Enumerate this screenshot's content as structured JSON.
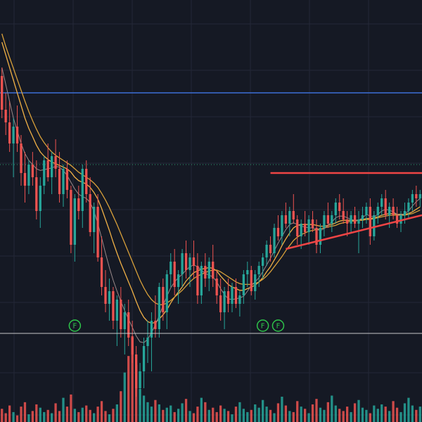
{
  "colors": {
    "background": "#151924",
    "grid": "#232837",
    "up": "#26a69a",
    "down": "#ef5350",
    "ma_fast": "#f0b046",
    "ma_slow": "#d8a03a",
    "ma_thin": "#9a8a8a",
    "horizontal_line": "#3d6fd6",
    "dotted_line": "#2b9c6b",
    "trend_line": "#ef4545",
    "separator": "#c8c8c8",
    "marker": "#2ec44a"
  },
  "chart_data": {
    "type": "candlestick",
    "grid": true,
    "price_range": [
      35.0,
      74.0
    ],
    "horizontal_line_price": 63.0,
    "dotted_line_price": 54.5,
    "candles": [
      [
        0,
        65,
        66,
        60,
        61
      ],
      [
        1,
        61,
        63,
        58,
        59.5
      ],
      [
        2,
        59.5,
        62,
        56,
        57
      ],
      [
        3,
        57,
        60,
        53,
        59
      ],
      [
        4,
        59,
        61.5,
        56,
        57
      ],
      [
        5,
        57,
        58,
        52,
        53.5
      ],
      [
        6,
        53.5,
        56,
        50,
        52
      ],
      [
        7,
        52,
        55,
        51,
        54.5
      ],
      [
        8,
        54.5,
        56,
        52,
        53
      ],
      [
        9,
        53,
        55,
        48,
        49
      ],
      [
        10,
        49,
        53,
        47,
        52
      ],
      [
        11,
        52,
        55.5,
        51,
        55
      ],
      [
        12,
        55,
        57,
        52.5,
        53
      ],
      [
        13,
        53,
        56,
        51,
        55.5
      ],
      [
        14,
        55.5,
        57.5,
        53,
        54
      ],
      [
        15,
        54,
        56,
        50,
        51
      ],
      [
        16,
        51,
        54.5,
        49.5,
        54
      ],
      [
        17,
        54,
        55,
        50.5,
        51.5
      ],
      [
        18,
        51.5,
        52,
        44,
        45
      ],
      [
        19,
        45,
        51,
        43,
        50.5
      ],
      [
        20,
        50.5,
        52,
        48,
        49
      ],
      [
        21,
        49,
        54.5,
        47,
        54
      ],
      [
        22,
        54,
        55,
        50,
        51
      ],
      [
        23,
        51,
        53,
        46,
        46.5
      ],
      [
        24,
        46.5,
        50,
        44,
        49.5
      ],
      [
        25,
        49.5,
        51,
        43,
        43.5
      ],
      [
        26,
        43.5,
        46,
        39,
        40
      ],
      [
        27,
        40,
        42,
        37,
        38
      ],
      [
        28,
        38,
        41,
        36,
        39.5
      ],
      [
        29,
        39.5,
        40,
        35,
        36
      ],
      [
        30,
        36,
        39,
        33,
        38.5
      ],
      [
        31,
        38.5,
        40,
        34,
        35
      ],
      [
        32,
        35,
        38,
        32,
        37
      ],
      [
        33,
        37,
        38.5,
        33,
        34
      ],
      [
        34,
        34,
        36,
        31,
        32
      ],
      [
        35,
        32,
        33,
        27,
        28
      ],
      [
        36,
        28,
        31,
        26,
        30
      ],
      [
        37,
        30,
        34,
        28,
        33
      ],
      [
        38,
        33,
        36,
        31,
        34
      ],
      [
        39,
        34,
        37,
        30,
        36
      ],
      [
        40,
        36,
        39,
        34,
        35
      ],
      [
        41,
        35,
        40.5,
        34,
        40
      ],
      [
        42,
        40,
        41,
        36,
        37
      ],
      [
        43,
        37,
        42,
        35,
        41.5
      ],
      [
        44,
        41.5,
        44,
        40,
        43
      ],
      [
        45,
        43,
        44.5,
        39,
        40
      ],
      [
        46,
        40,
        42,
        38,
        41.5
      ],
      [
        47,
        41.5,
        44.5,
        40,
        44
      ],
      [
        48,
        44,
        45.5,
        41,
        42
      ],
      [
        49,
        42,
        44,
        40,
        43.5
      ],
      [
        50,
        43.5,
        45.5,
        41,
        42.5
      ],
      [
        51,
        42.5,
        44,
        38,
        39
      ],
      [
        52,
        39,
        43,
        38,
        42.5
      ],
      [
        53,
        42.5,
        44,
        40,
        41
      ],
      [
        54,
        41,
        43.5,
        39.5,
        43
      ],
      [
        55,
        43,
        45,
        40,
        41
      ],
      [
        56,
        41,
        42,
        38,
        39
      ],
      [
        57,
        39,
        41,
        36,
        37
      ],
      [
        58,
        37,
        40,
        35,
        39.5
      ],
      [
        59,
        39.5,
        41,
        37,
        38
      ],
      [
        60,
        38,
        40.5,
        37,
        40
      ],
      [
        61,
        40,
        41,
        37.5,
        38
      ],
      [
        62,
        38,
        39.5,
        36.5,
        39
      ],
      [
        63,
        39,
        42,
        38,
        41.5
      ],
      [
        64,
        41.5,
        43,
        40,
        42
      ],
      [
        65,
        42,
        42.5,
        39,
        39.5
      ],
      [
        66,
        39.5,
        42,
        38.5,
        41.5
      ],
      [
        67,
        41.5,
        43,
        40,
        42.5
      ],
      [
        68,
        42.5,
        44,
        41,
        43.5
      ],
      [
        69,
        43.5,
        45.5,
        42.5,
        45
      ],
      [
        70,
        45,
        46,
        43,
        44
      ],
      [
        71,
        44,
        47.5,
        43.5,
        47
      ],
      [
        72,
        47,
        48.5,
        45.5,
        46
      ],
      [
        73,
        46,
        49,
        45,
        48.5
      ],
      [
        74,
        48.5,
        50,
        47,
        47.5
      ],
      [
        75,
        47.5,
        49.5,
        46,
        49
      ],
      [
        76,
        49,
        51,
        47.5,
        48
      ],
      [
        77,
        48,
        48.5,
        45,
        46
      ],
      [
        78,
        46,
        48,
        44.5,
        47.5
      ],
      [
        79,
        47.5,
        49,
        46,
        46.5
      ],
      [
        80,
        46.5,
        48.5,
        45,
        48
      ],
      [
        81,
        48,
        49,
        46.5,
        47
      ],
      [
        82,
        47,
        48,
        44,
        45
      ],
      [
        83,
        45,
        47.5,
        44,
        47
      ],
      [
        84,
        47,
        49,
        46,
        48.5
      ],
      [
        85,
        48.5,
        50,
        47,
        47.5
      ],
      [
        86,
        47.5,
        49,
        46.5,
        48.5
      ],
      [
        87,
        48.5,
        50.5,
        47.5,
        50
      ],
      [
        88,
        50,
        51,
        48,
        49
      ],
      [
        89,
        49,
        50.5,
        47.5,
        48
      ],
      [
        90,
        48,
        49,
        46,
        47.5
      ],
      [
        91,
        47.5,
        49,
        46.5,
        48.5
      ],
      [
        92,
        48.5,
        49.5,
        47,
        47.5
      ],
      [
        93,
        47.5,
        49,
        44,
        48
      ],
      [
        94,
        48,
        49.5,
        47,
        48.5
      ],
      [
        95,
        48.5,
        50,
        47.5,
        49.5
      ],
      [
        96,
        49.5,
        50.5,
        45,
        46
      ],
      [
        97,
        46,
        49,
        45.5,
        48.5
      ],
      [
        98,
        48.5,
        50,
        47.5,
        49.5
      ],
      [
        99,
        49.5,
        51,
        48.5,
        50.5
      ],
      [
        100,
        50.5,
        51.5,
        48,
        48.5
      ],
      [
        101,
        48.5,
        50,
        47,
        49.5
      ],
      [
        102,
        49.5,
        50.5,
        48,
        48.5
      ],
      [
        103,
        48.5,
        49.5,
        47,
        47.5
      ],
      [
        104,
        47.5,
        49,
        46.5,
        48.5
      ],
      [
        105,
        48.5,
        50,
        47.5,
        49
      ],
      [
        106,
        49,
        50.5,
        48,
        50
      ],
      [
        107,
        50,
        51.5,
        49,
        51
      ],
      [
        108,
        51,
        52,
        49.5,
        50.5
      ],
      [
        109,
        50.5,
        51.5,
        49.5,
        51
      ]
    ],
    "moving_averages": [
      {
        "key": "ma_fast",
        "values": [
          69,
          67.5,
          66,
          64.5,
          63,
          61.5,
          60,
          58.8,
          57.8,
          56.8,
          56,
          55.5,
          55.1,
          54.8,
          54.6,
          54.4,
          54.2,
          54,
          53.6,
          53,
          52.6,
          52.4,
          52.2,
          51.8,
          51.2,
          50.4,
          49.3,
          48,
          46.7,
          45.3,
          44,
          42.8,
          41.7,
          40.6,
          39.5,
          38.3,
          37.2,
          36.4,
          35.9,
          35.7,
          35.8,
          36.2,
          36.7,
          37.3,
          38.1,
          38.8,
          39.4,
          40,
          40.7,
          41.2,
          41.7,
          41.9,
          42.1,
          42.2,
          42.3,
          42.2,
          41.9,
          41.3,
          40.8,
          40.3,
          40,
          39.8,
          39.6,
          39.6,
          39.8,
          40,
          40.2,
          40.6,
          41.1,
          41.8,
          42.4,
          43.2,
          44,
          44.9,
          45.7,
          46.4,
          47,
          47.3,
          47.4,
          47.4,
          47.4,
          47.4,
          47.3,
          47.2,
          47.2,
          47.3,
          47.4,
          47.6,
          47.8,
          47.9,
          47.9,
          47.9,
          47.9,
          47.9,
          48,
          48.1,
          48.1,
          48.2,
          48.3,
          48.5,
          48.6,
          48.7,
          48.7,
          48.6,
          48.6,
          48.6,
          48.7,
          48.9,
          49.2,
          49.5
        ]
      },
      {
        "key": "ma_slow",
        "values": [
          70,
          68.5,
          67.2,
          65.9,
          64.6,
          63.3,
          62,
          60.8,
          59.7,
          58.7,
          57.8,
          57.1,
          56.5,
          56,
          55.6,
          55.3,
          55,
          54.7,
          54.4,
          54,
          53.6,
          53.3,
          53,
          52.7,
          52.3,
          51.8,
          51.1,
          50.3,
          49.4,
          48.4,
          47.4,
          46.3,
          45.2,
          44.1,
          43,
          41.9,
          40.8,
          39.9,
          39.1,
          38.5,
          38.1,
          37.9,
          37.9,
          38.1,
          38.4,
          38.8,
          39.2,
          39.6,
          40.1,
          40.6,
          41,
          41.3,
          41.5,
          41.7,
          41.9,
          42,
          42,
          41.8,
          41.5,
          41.2,
          40.9,
          40.6,
          40.4,
          40.3,
          40.3,
          40.3,
          40.4,
          40.6,
          40.9,
          41.3,
          41.8,
          42.4,
          43,
          43.6,
          44.3,
          44.9,
          45.5,
          45.9,
          46.2,
          46.4,
          46.6,
          46.7,
          46.8,
          46.9,
          47,
          47.1,
          47.2,
          47.3,
          47.5,
          47.6,
          47.7,
          47.8,
          47.8,
          47.9,
          47.9,
          48,
          48,
          48.1,
          48.2,
          48.3,
          48.4,
          48.5,
          48.5,
          48.5,
          48.5,
          48.5,
          48.6,
          48.7,
          48.9,
          49.1
        ]
      },
      {
        "key": "ma_thin",
        "values": [
          66,
          64,
          62,
          60,
          58.5,
          57,
          55.8,
          55,
          54.5,
          54,
          53.8,
          53.9,
          54,
          54.1,
          54.3,
          54.2,
          53.8,
          53.2,
          52.4,
          51.6,
          51,
          50.7,
          50.5,
          50,
          49,
          47.5,
          45.8,
          44,
          42.3,
          40.8,
          39.5,
          38.3,
          37.2,
          36.2,
          35.2,
          34.2,
          33.5,
          33.4,
          33.8,
          34.6,
          35.5,
          36.6,
          37.8,
          38.9,
          39.9,
          40.6,
          41.1,
          41.5,
          42,
          42.4,
          42.6,
          42.4,
          42,
          41.6,
          41.4,
          41.2,
          40.6,
          39.8,
          39.1,
          38.6,
          38.5,
          38.6,
          38.7,
          38.9,
          39.5,
          40.2,
          40.6,
          41.1,
          41.8,
          42.6,
          43.4,
          44.3,
          45.2,
          46,
          46.8,
          47.4,
          47.6,
          47.4,
          47.2,
          47.1,
          47,
          47,
          46.8,
          46.7,
          46.9,
          47.3,
          47.7,
          48.2,
          48.4,
          48.4,
          48.2,
          48,
          47.9,
          47.9,
          48.2,
          48.6,
          48.4,
          48.3,
          48.6,
          49,
          49.2,
          49.1,
          48.9,
          48.6,
          48.5,
          48.7,
          49,
          49.6,
          50.1,
          50.5
        ]
      }
    ],
    "trend_lines": [
      {
        "from": [
          70,
          53.5
        ],
        "to": [
          109,
          53.5
        ]
      },
      {
        "from": [
          74,
          44.5
        ],
        "to": [
          109,
          48.5
        ]
      }
    ],
    "event_markers": [
      {
        "index": 19,
        "label": "F"
      },
      {
        "index": 68,
        "label": "F"
      },
      {
        "index": 72,
        "label": "F"
      }
    ],
    "volume": [
      12,
      8,
      15,
      9,
      6,
      14,
      18,
      7,
      10,
      16,
      13,
      9,
      11,
      8,
      17,
      10,
      22,
      14,
      25,
      12,
      9,
      13,
      15,
      11,
      8,
      14,
      19,
      10,
      7,
      12,
      16,
      28,
      45,
      60,
      78,
      52,
      30,
      24,
      18,
      14,
      20,
      16,
      11,
      13,
      15,
      9,
      12,
      17,
      21,
      10,
      8,
      14,
      22,
      18,
      11,
      13,
      9,
      15,
      12,
      10,
      7,
      14,
      18,
      12,
      9,
      11,
      16,
      13,
      20,
      14,
      11,
      8,
      17,
      23,
      15,
      10,
      9,
      19,
      14,
      12,
      8,
      16,
      21,
      13,
      11,
      18,
      24,
      15,
      12,
      10,
      14,
      9,
      17,
      20,
      13,
      11,
      8,
      15,
      12,
      16,
      14,
      10,
      19,
      13,
      9,
      17,
      22,
      15,
      11,
      14
    ]
  }
}
